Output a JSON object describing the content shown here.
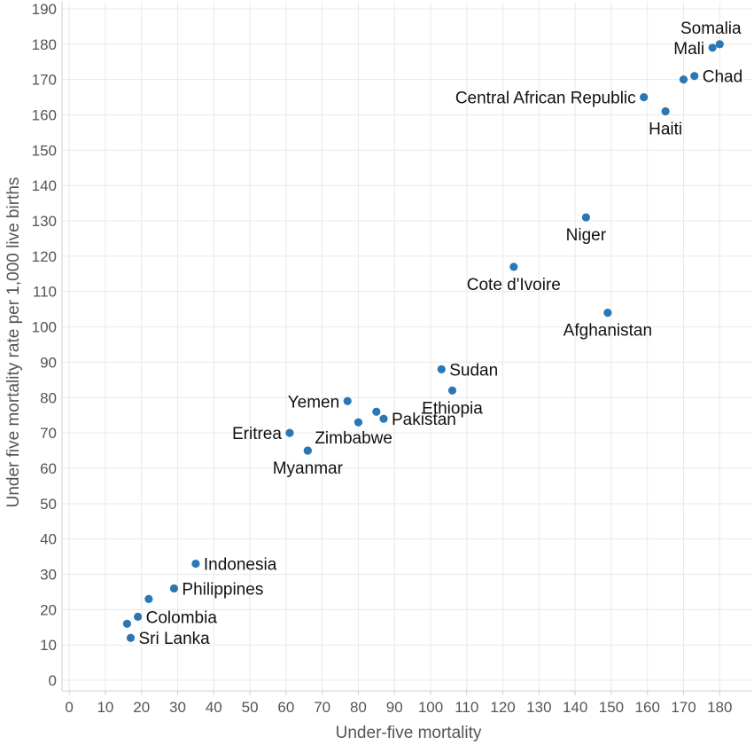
{
  "chart_data": {
    "type": "scatter",
    "xlabel": "Under-five mortality",
    "ylabel": "Under five mortality rate per 1,000 live births",
    "xlim": [
      -2,
      189
    ],
    "ylim": [
      -3,
      192
    ],
    "x_ticks": [
      0,
      10,
      20,
      30,
      40,
      50,
      60,
      70,
      80,
      90,
      100,
      110,
      120,
      130,
      140,
      150,
      160,
      170,
      180
    ],
    "y_ticks": [
      0,
      10,
      20,
      30,
      40,
      50,
      60,
      70,
      80,
      90,
      100,
      110,
      120,
      130,
      140,
      150,
      160,
      170,
      180,
      190
    ],
    "grid": true,
    "marker_color": "#2a77b4",
    "points": [
      {
        "label": "Somalia",
        "x": 180,
        "y": 180,
        "label_pos": "above"
      },
      {
        "label": "Mali",
        "x": 178,
        "y": 179,
        "label_pos": "left"
      },
      {
        "label": "Chad",
        "x": 173,
        "y": 171,
        "label_pos": "right"
      },
      {
        "label": "",
        "x": 170,
        "y": 170
      },
      {
        "label": "Central African Republic",
        "x": 159,
        "y": 165,
        "label_pos": "left"
      },
      {
        "label": "Haiti",
        "x": 165,
        "y": 161,
        "label_pos": "below"
      },
      {
        "label": "Niger",
        "x": 143,
        "y": 131,
        "label_pos": "below"
      },
      {
        "label": "Cote d'Ivoire",
        "x": 123,
        "y": 117,
        "label_pos": "below"
      },
      {
        "label": "Afghanistan",
        "x": 149,
        "y": 104,
        "label_pos": "below"
      },
      {
        "label": "Sudan",
        "x": 103,
        "y": 88,
        "label_pos": "right"
      },
      {
        "label": "Ethiopia",
        "x": 106,
        "y": 82,
        "label_pos": "below"
      },
      {
        "label": "Yemen",
        "x": 77,
        "y": 79,
        "label_pos": "left"
      },
      {
        "label": "Pakistan",
        "x": 87,
        "y": 74,
        "label_pos": "right"
      },
      {
        "label": "",
        "x": 85,
        "y": 76
      },
      {
        "label": "",
        "x": 80,
        "y": 73
      },
      {
        "label": "Eritrea",
        "x": 61,
        "y": 70,
        "label_pos": "left"
      },
      {
        "label": "Zimbabwe",
        "x": 66,
        "y": 65,
        "label_pos": "above-right"
      },
      {
        "label": "Myanmar",
        "x": 66,
        "y": 65,
        "label_pos": "below"
      },
      {
        "label": "Indonesia",
        "x": 35,
        "y": 33,
        "label_pos": "right"
      },
      {
        "label": "Philippines",
        "x": 29,
        "y": 26,
        "label_pos": "right"
      },
      {
        "label": "",
        "x": 22,
        "y": 23
      },
      {
        "label": "Colombia",
        "x": 19,
        "y": 18,
        "label_pos": "right"
      },
      {
        "label": "",
        "x": 16,
        "y": 16
      },
      {
        "label": "Sri Lanka",
        "x": 17,
        "y": 12,
        "label_pos": "right"
      }
    ]
  }
}
